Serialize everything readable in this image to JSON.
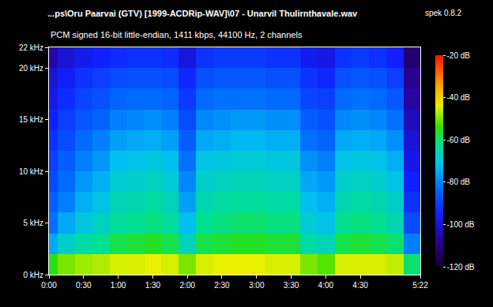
{
  "chart_data": {
    "type": "heatmap",
    "title": "...ps\\Oru Paarvai (GTV) [1999-ACDRip-WAV]\\07 - Unarvil Thulirnthavale.wav",
    "subtitle": "PCM signed 16-bit little-endian, 1411 kbps, 44100 Hz, 2 channels",
    "annotations": [
      {
        "text": "spek 0.8.2"
      }
    ],
    "x": [
      0,
      15,
      30,
      45,
      60,
      75,
      90,
      105,
      120,
      135,
      150,
      165,
      180,
      195,
      210,
      225,
      240,
      255,
      270,
      285,
      300,
      315
    ],
    "y": [
      1,
      3,
      5,
      7,
      9,
      11,
      13,
      15,
      17,
      19,
      21
    ],
    "cells": [
      [
        -55,
        -75,
        -82,
        -85,
        -88,
        -90,
        -92,
        -95,
        -98,
        -100,
        -105
      ],
      [
        -50,
        -68,
        -75,
        -80,
        -83,
        -85,
        -88,
        -90,
        -93,
        -96,
        -100
      ],
      [
        -48,
        -64,
        -70,
        -74,
        -77,
        -80,
        -83,
        -86,
        -89,
        -92,
        -97
      ],
      [
        -47,
        -62,
        -67,
        -71,
        -74,
        -77,
        -80,
        -84,
        -87,
        -90,
        -95
      ],
      [
        -45,
        -58,
        -63,
        -66,
        -69,
        -72,
        -76,
        -80,
        -84,
        -88,
        -93
      ],
      [
        -45,
        -57,
        -62,
        -65,
        -68,
        -71,
        -75,
        -79,
        -83,
        -87,
        -92
      ],
      [
        -44,
        -56,
        -61,
        -64,
        -67,
        -70,
        -74,
        -78,
        -83,
        -87,
        -92
      ],
      [
        -45,
        -58,
        -63,
        -66,
        -69,
        -72,
        -76,
        -80,
        -84,
        -88,
        -93
      ],
      [
        -50,
        -66,
        -72,
        -76,
        -79,
        -82,
        -85,
        -88,
        -91,
        -94,
        -99
      ],
      [
        -45,
        -58,
        -62,
        -65,
        -68,
        -71,
        -75,
        -79,
        -83,
        -87,
        -92
      ],
      [
        -44,
        -57,
        -61,
        -64,
        -67,
        -70,
        -74,
        -78,
        -82,
        -86,
        -91
      ],
      [
        -44,
        -56,
        -60,
        -63,
        -66,
        -69,
        -73,
        -77,
        -82,
        -86,
        -91
      ],
      [
        -44,
        -56,
        -60,
        -63,
        -66,
        -69,
        -73,
        -77,
        -82,
        -86,
        -91
      ],
      [
        -45,
        -57,
        -61,
        -64,
        -67,
        -70,
        -74,
        -78,
        -83,
        -87,
        -92
      ],
      [
        -45,
        -57,
        -61,
        -64,
        -67,
        -70,
        -74,
        -78,
        -83,
        -87,
        -92
      ],
      [
        -50,
        -64,
        -69,
        -72,
        -75,
        -78,
        -82,
        -85,
        -89,
        -92,
        -97
      ],
      [
        -52,
        -66,
        -71,
        -74,
        -77,
        -80,
        -84,
        -87,
        -90,
        -94,
        -98
      ],
      [
        -45,
        -58,
        -62,
        -65,
        -68,
        -71,
        -75,
        -79,
        -83,
        -87,
        -92
      ],
      [
        -45,
        -57,
        -61,
        -64,
        -67,
        -70,
        -74,
        -78,
        -82,
        -86,
        -91
      ],
      [
        -45,
        -58,
        -62,
        -65,
        -68,
        -71,
        -75,
        -79,
        -83,
        -87,
        -92
      ],
      [
        -46,
        -60,
        -65,
        -68,
        -71,
        -74,
        -78,
        -82,
        -86,
        -90,
        -95
      ],
      [
        -60,
        -80,
        -88,
        -92,
        -95,
        -98,
        -100,
        -103,
        -106,
        -108,
        -112
      ]
    ],
    "xlim": [
      0,
      322
    ],
    "xticks": [
      {
        "value": 0,
        "label": "0:00"
      },
      {
        "value": 30,
        "label": "0:30"
      },
      {
        "value": 60,
        "label": "1:00"
      },
      {
        "value": 90,
        "label": "1:30"
      },
      {
        "value": 120,
        "label": "2:00"
      },
      {
        "value": 150,
        "label": "2:30"
      },
      {
        "value": 180,
        "label": "3:00"
      },
      {
        "value": 210,
        "label": "3:30"
      },
      {
        "value": 240,
        "label": "4:00"
      },
      {
        "value": 270,
        "label": "4:30"
      },
      {
        "value": 322,
        "label": "5:22"
      }
    ],
    "ylim": [
      0,
      22
    ],
    "yticks": [
      {
        "value": 0,
        "label": "0 kHz"
      },
      {
        "value": 5,
        "label": "5 kHz"
      },
      {
        "value": 10,
        "label": "10 kHz"
      },
      {
        "value": 15,
        "label": "15 kHz"
      },
      {
        "value": 20,
        "label": "20 kHz"
      },
      {
        "value": 22,
        "label": "22 kHz"
      }
    ],
    "colorbar": {
      "range": [
        -120,
        -20
      ],
      "ticks": [
        {
          "value": -20,
          "label": "-20 dB"
        },
        {
          "value": -40,
          "label": "-40 dB"
        },
        {
          "value": -60,
          "label": "-60 dB"
        },
        {
          "value": -80,
          "label": "-80 dB"
        },
        {
          "value": -100,
          "label": "-100 dB"
        },
        {
          "value": -120,
          "label": "-120 dB"
        }
      ]
    }
  }
}
